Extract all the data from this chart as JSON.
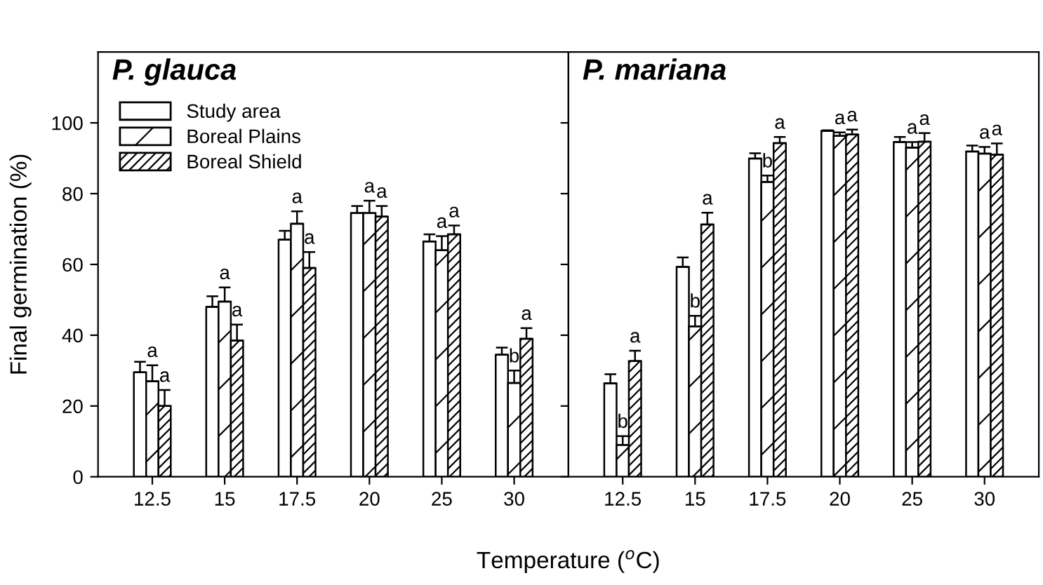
{
  "chart_data": [
    {
      "type": "bar",
      "title": "P. glauca",
      "xlabel": "Temperature ($^{o}$C)",
      "ylabel": "Final germination (%)",
      "categories": [
        "12.5",
        "15",
        "17.5",
        "20",
        "25",
        "30"
      ],
      "ylim": [
        0,
        120
      ],
      "yticks": [
        0,
        20,
        40,
        60,
        80,
        100
      ],
      "legend": "top left",
      "series": [
        {
          "name": "Study area",
          "color": "#ffffff",
          "values": [
            29.5,
            48,
            67,
            74.5,
            66.5,
            34.5
          ],
          "errors": [
            [
              29.5,
              32.5
            ],
            [
              48,
              51
            ],
            [
              67,
              69.5
            ],
            [
              74.5,
              76.5
            ],
            [
              66.5,
              68.5
            ],
            [
              34.5,
              36.5
            ]
          ]
        },
        {
          "name": "Boreal Plains",
          "color": "#000000",
          "values": [
            27,
            49.5,
            71.5,
            74.5,
            64,
            26.5
          ],
          "errors": [
            [
              27,
              31.5
            ],
            [
              49.5,
              53.5
            ],
            [
              71.5,
              75
            ],
            [
              74.5,
              78
            ],
            [
              64,
              68
            ],
            [
              26.5,
              30
            ]
          ],
          "value_labels": [
            "a",
            "a",
            "a",
            "a",
            "a",
            "b"
          ]
        },
        {
          "name": "Boreal Shield",
          "color": "#000000",
          "values": [
            20,
            38.5,
            59,
            73.5,
            68.5,
            39
          ],
          "errors": [
            [
              20,
              24.5
            ],
            [
              38.5,
              43
            ],
            [
              59,
              63.5
            ],
            [
              73.5,
              76.5
            ],
            [
              68.5,
              71
            ],
            [
              39,
              42
            ]
          ],
          "value_labels": [
            "a",
            "a",
            "a",
            "a",
            "a",
            "a"
          ]
        }
      ]
    },
    {
      "type": "bar",
      "title": "P. mariana",
      "categories": [
        "12.5",
        "15",
        "17.5",
        "20",
        "25",
        "30"
      ],
      "ylim": [
        0,
        120
      ],
      "yticks": [
        0,
        20,
        40,
        60,
        80,
        100
      ],
      "tick_labels": "x",
      "series": [
        {
          "color": "#ffffff",
          "values": [
            26.4,
            59.3,
            89.9,
            97.7,
            94.6,
            91.9
          ],
          "errors": [
            [
              26.4,
              29
            ],
            [
              59.3,
              62
            ],
            [
              89.9,
              91.4
            ],
            [
              97.7,
              97.9
            ],
            [
              94.6,
              96
            ],
            [
              91.9,
              93.6
            ]
          ]
        },
        {
          "color": "#000000",
          "values": [
            9,
            42.5,
            83.3,
            96.3,
            93,
            91.3
          ],
          "errors": [
            [
              9,
              11.5
            ],
            [
              42.5,
              45.5
            ],
            [
              83.3,
              85.1
            ],
            [
              96.3,
              97.3
            ],
            [
              93,
              94.6
            ],
            [
              91.3,
              93.2
            ]
          ],
          "value_labels": [
            "b",
            "b",
            "b",
            "a",
            "a",
            "a"
          ]
        },
        {
          "color": "#000000",
          "values": [
            32.7,
            71.3,
            94.3,
            96.7,
            94.7,
            91
          ],
          "errors": [
            [
              32.7,
              35.6
            ],
            [
              71.3,
              74.6
            ],
            [
              94.3,
              96
            ],
            [
              96.7,
              98.1
            ],
            [
              94.7,
              97.1
            ],
            [
              91,
              94.2
            ]
          ],
          "value_labels": [
            "a",
            "a",
            "a",
            "a",
            "a",
            "a"
          ]
        }
      ]
    }
  ]
}
